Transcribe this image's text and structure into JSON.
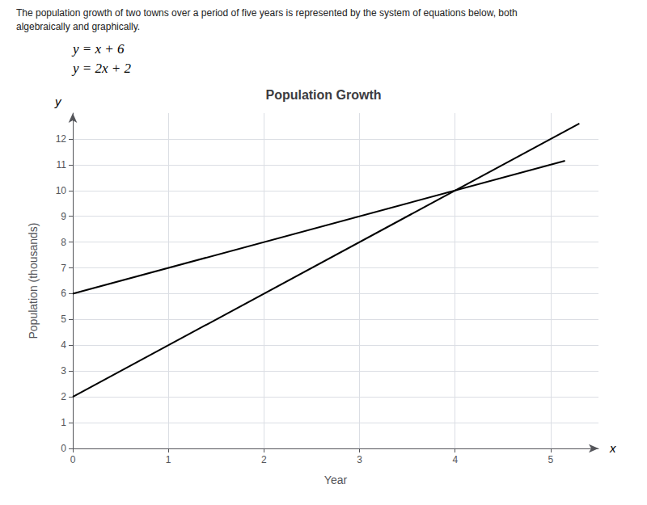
{
  "chart_data": {
    "type": "line",
    "title": "Population Growth",
    "xlabel": "Year",
    "ylabel": "Population (thousands)",
    "xlim": [
      0,
      5.5
    ],
    "ylim": [
      0,
      13
    ],
    "xticks": [
      0,
      1,
      2,
      3,
      4,
      5
    ],
    "yticks": [
      0,
      1,
      2,
      3,
      4,
      5,
      6,
      7,
      8,
      9,
      10,
      11,
      12
    ],
    "grid": true,
    "series": [
      {
        "color": "#000000",
        "x": [
          0,
          5.15
        ],
        "values": [
          6,
          11.15
        ]
      },
      {
        "color": "#000000",
        "x": [
          0,
          5.3
        ],
        "values": [
          2,
          12.6
        ]
      }
    ],
    "annotations": [
      "The population growth of two towns over a period of five years is represented by the system of equations below, both",
      "algebraically and graphically.",
      "y = x + 6",
      "y = 2x + 2",
      "x",
      "y"
    ]
  }
}
